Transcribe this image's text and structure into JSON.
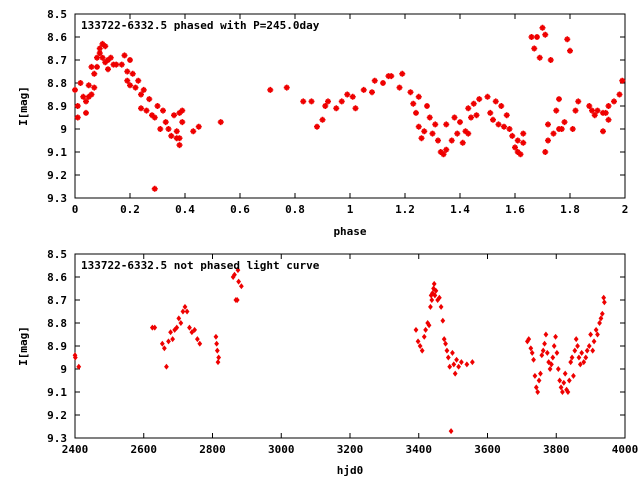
{
  "chart_data": [
    {
      "type": "scatter",
      "title": "133722-6332.5 phased with P=245.0day",
      "xlabel": "phase",
      "ylabel": "I[mag]",
      "xlim": [
        0,
        2
      ],
      "ylim": [
        8.5,
        9.3
      ],
      "y_inverted": true,
      "xticks": [
        "0",
        "0.2",
        "0.4",
        "0.6",
        "0.8",
        "1",
        "1.2",
        "1.4",
        "1.6",
        "1.8",
        "2"
      ],
      "yticks": [
        "8.5",
        "8.6",
        "8.7",
        "8.8",
        "8.9",
        "9",
        "9.1",
        "9.2",
        "9.3"
      ],
      "marker": "plus",
      "color": "#ee0000",
      "points": [
        [
          0.0,
          8.83
        ],
        [
          0.01,
          8.9
        ],
        [
          0.01,
          8.95
        ],
        [
          0.02,
          8.8
        ],
        [
          0.03,
          8.86
        ],
        [
          0.04,
          8.88
        ],
        [
          0.04,
          8.93
        ],
        [
          0.05,
          8.81
        ],
        [
          0.05,
          8.86
        ],
        [
          0.06,
          8.73
        ],
        [
          0.06,
          8.85
        ],
        [
          0.07,
          8.82
        ],
        [
          0.07,
          8.76
        ],
        [
          0.08,
          8.69
        ],
        [
          0.08,
          8.73
        ],
        [
          0.09,
          8.65
        ],
        [
          0.09,
          8.67
        ],
        [
          0.1,
          8.63
        ],
        [
          0.1,
          8.69
        ],
        [
          0.11,
          8.64
        ],
        [
          0.11,
          8.71
        ],
        [
          0.12,
          8.7
        ],
        [
          0.12,
          8.74
        ],
        [
          0.13,
          8.69
        ],
        [
          0.14,
          8.72
        ],
        [
          0.15,
          8.72
        ],
        [
          0.17,
          8.72
        ],
        [
          0.18,
          8.68
        ],
        [
          0.19,
          8.75
        ],
        [
          0.19,
          8.79
        ],
        [
          0.2,
          8.7
        ],
        [
          0.2,
          8.81
        ],
        [
          0.21,
          8.76
        ],
        [
          0.22,
          8.82
        ],
        [
          0.23,
          8.79
        ],
        [
          0.24,
          8.85
        ],
        [
          0.24,
          8.91
        ],
        [
          0.25,
          8.83
        ],
        [
          0.26,
          8.92
        ],
        [
          0.27,
          8.87
        ],
        [
          0.28,
          8.94
        ],
        [
          0.29,
          9.26
        ],
        [
          0.29,
          8.95
        ],
        [
          0.3,
          8.9
        ],
        [
          0.31,
          9.0
        ],
        [
          0.32,
          8.92
        ],
        [
          0.33,
          8.97
        ],
        [
          0.34,
          9.0
        ],
        [
          0.35,
          9.03
        ],
        [
          0.36,
          8.94
        ],
        [
          0.37,
          9.01
        ],
        [
          0.37,
          9.04
        ],
        [
          0.38,
          9.07
        ],
        [
          0.38,
          8.93
        ],
        [
          0.38,
          9.04
        ],
        [
          0.39,
          8.97
        ],
        [
          0.39,
          8.92
        ],
        [
          0.43,
          9.01
        ],
        [
          0.45,
          8.99
        ],
        [
          0.53,
          8.97
        ],
        [
          0.71,
          8.83
        ],
        [
          0.77,
          8.82
        ],
        [
          0.83,
          8.88
        ],
        [
          0.86,
          8.88
        ],
        [
          0.88,
          8.99
        ],
        [
          0.9,
          8.96
        ],
        [
          0.91,
          8.9
        ],
        [
          0.92,
          8.88
        ],
        [
          0.95,
          8.91
        ],
        [
          0.97,
          8.88
        ],
        [
          0.99,
          8.85
        ],
        [
          1.01,
          8.86
        ],
        [
          1.02,
          8.91
        ],
        [
          1.05,
          8.83
        ],
        [
          1.08,
          8.84
        ],
        [
          1.09,
          8.79
        ],
        [
          1.12,
          8.8
        ],
        [
          1.14,
          8.77
        ],
        [
          1.15,
          8.77
        ],
        [
          1.18,
          8.82
        ],
        [
          1.19,
          8.76
        ],
        [
          1.22,
          8.84
        ],
        [
          1.23,
          8.89
        ],
        [
          1.24,
          8.93
        ],
        [
          1.25,
          8.86
        ],
        [
          1.25,
          8.99
        ],
        [
          1.26,
          9.04
        ],
        [
          1.27,
          9.01
        ],
        [
          1.28,
          8.9
        ],
        [
          1.29,
          8.95
        ],
        [
          1.3,
          9.02
        ],
        [
          1.31,
          8.98
        ],
        [
          1.32,
          9.05
        ],
        [
          1.33,
          9.1
        ],
        [
          1.34,
          9.11
        ],
        [
          1.35,
          9.09
        ],
        [
          1.35,
          8.98
        ],
        [
          1.37,
          9.05
        ],
        [
          1.38,
          8.95
        ],
        [
          1.39,
          9.02
        ],
        [
          1.4,
          8.97
        ],
        [
          1.41,
          9.06
        ],
        [
          1.42,
          9.01
        ],
        [
          1.43,
          9.02
        ],
        [
          1.43,
          8.91
        ],
        [
          1.44,
          8.95
        ],
        [
          1.45,
          8.89
        ],
        [
          1.46,
          8.94
        ],
        [
          1.47,
          8.87
        ],
        [
          1.5,
          8.86
        ],
        [
          1.51,
          8.93
        ],
        [
          1.52,
          8.96
        ],
        [
          1.53,
          8.88
        ],
        [
          1.54,
          8.98
        ],
        [
          1.55,
          8.9
        ],
        [
          1.56,
          8.99
        ],
        [
          1.57,
          8.94
        ],
        [
          1.58,
          9.0
        ],
        [
          1.59,
          9.03
        ],
        [
          1.6,
          9.08
        ],
        [
          1.61,
          9.1
        ],
        [
          1.61,
          9.05
        ],
        [
          1.62,
          9.11
        ],
        [
          1.63,
          9.06
        ],
        [
          1.63,
          9.02
        ],
        [
          1.66,
          8.6
        ],
        [
          1.67,
          8.65
        ],
        [
          1.68,
          8.6
        ],
        [
          1.69,
          8.69
        ],
        [
          1.7,
          8.56
        ],
        [
          1.71,
          8.59
        ],
        [
          1.71,
          9.1
        ],
        [
          1.72,
          9.05
        ],
        [
          1.72,
          8.98
        ],
        [
          1.73,
          8.7
        ],
        [
          1.74,
          9.02
        ],
        [
          1.75,
          8.92
        ],
        [
          1.76,
          9.0
        ],
        [
          1.76,
          8.87
        ],
        [
          1.77,
          9.0
        ],
        [
          1.78,
          8.97
        ],
        [
          1.79,
          8.61
        ],
        [
          1.8,
          8.66
        ],
        [
          1.81,
          9.0
        ],
        [
          1.82,
          8.92
        ],
        [
          1.83,
          8.88
        ],
        [
          1.87,
          8.9
        ],
        [
          1.88,
          8.92
        ],
        [
          1.89,
          8.94
        ],
        [
          1.9,
          8.92
        ],
        [
          1.92,
          8.93
        ],
        [
          1.92,
          9.01
        ],
        [
          1.93,
          8.93
        ],
        [
          1.94,
          8.9
        ],
        [
          1.94,
          8.96
        ],
        [
          1.96,
          8.88
        ],
        [
          1.98,
          8.85
        ],
        [
          1.99,
          8.79
        ]
      ]
    },
    {
      "type": "scatter",
      "title": "133722-6332.5 not phased light curve",
      "xlabel": "hjd0",
      "ylabel": "I[mag]",
      "xlim": [
        2400,
        4000
      ],
      "ylim": [
        8.5,
        9.3
      ],
      "y_inverted": true,
      "xticks": [
        "2400",
        "2600",
        "2800",
        "3000",
        "3200",
        "3400",
        "3600",
        "3800",
        "4000"
      ],
      "yticks": [
        "8.5",
        "8.6",
        "8.7",
        "8.8",
        "8.9",
        "9",
        "9.1",
        "9.2",
        "9.3"
      ],
      "marker": "diamond",
      "color": "#ee0000",
      "points": [
        [
          2400,
          8.94
        ],
        [
          2401,
          8.95
        ],
        [
          2411,
          8.99
        ],
        [
          2625,
          8.82
        ],
        [
          2632,
          8.82
        ],
        [
          2654,
          8.89
        ],
        [
          2660,
          8.91
        ],
        [
          2666,
          8.99
        ],
        [
          2672,
          8.88
        ],
        [
          2678,
          8.84
        ],
        [
          2684,
          8.87
        ],
        [
          2690,
          8.83
        ],
        [
          2696,
          8.82
        ],
        [
          2702,
          8.78
        ],
        [
          2708,
          8.8
        ],
        [
          2714,
          8.75
        ],
        [
          2720,
          8.73
        ],
        [
          2726,
          8.75
        ],
        [
          2733,
          8.82
        ],
        [
          2740,
          8.84
        ],
        [
          2748,
          8.83
        ],
        [
          2756,
          8.87
        ],
        [
          2763,
          8.89
        ],
        [
          2810,
          8.86
        ],
        [
          2812,
          8.89
        ],
        [
          2814,
          8.92
        ],
        [
          2816,
          8.97
        ],
        [
          2818,
          8.95
        ],
        [
          2860,
          8.6
        ],
        [
          2864,
          8.59
        ],
        [
          2868,
          8.7
        ],
        [
          2872,
          8.7
        ],
        [
          2874,
          8.57
        ],
        [
          2876,
          8.62
        ],
        [
          2884,
          8.64
        ],
        [
          3392,
          8.83
        ],
        [
          3398,
          8.88
        ],
        [
          3404,
          8.9
        ],
        [
          3410,
          8.92
        ],
        [
          3416,
          8.86
        ],
        [
          3420,
          8.83
        ],
        [
          3426,
          8.8
        ],
        [
          3430,
          8.81
        ],
        [
          3434,
          8.73
        ],
        [
          3436,
          8.68
        ],
        [
          3438,
          8.7
        ],
        [
          3440,
          8.67
        ],
        [
          3443,
          8.65
        ],
        [
          3445,
          8.63
        ],
        [
          3447,
          8.68
        ],
        [
          3450,
          8.66
        ],
        [
          3455,
          8.7
        ],
        [
          3460,
          8.69
        ],
        [
          3465,
          8.73
        ],
        [
          3470,
          8.79
        ],
        [
          3474,
          8.87
        ],
        [
          3478,
          8.89
        ],
        [
          3482,
          8.92
        ],
        [
          3486,
          8.95
        ],
        [
          3490,
          8.99
        ],
        [
          3494,
          9.27
        ],
        [
          3498,
          8.93
        ],
        [
          3502,
          8.98
        ],
        [
          3506,
          9.02
        ],
        [
          3510,
          8.96
        ],
        [
          3516,
          8.99
        ],
        [
          3524,
          8.97
        ],
        [
          3540,
          8.98
        ],
        [
          3556,
          8.97
        ],
        [
          3716,
          8.88
        ],
        [
          3720,
          8.87
        ],
        [
          3726,
          8.91
        ],
        [
          3730,
          8.93
        ],
        [
          3734,
          8.96
        ],
        [
          3738,
          9.03
        ],
        [
          3742,
          9.08
        ],
        [
          3746,
          9.1
        ],
        [
          3750,
          9.05
        ],
        [
          3754,
          9.02
        ],
        [
          3758,
          8.94
        ],
        [
          3762,
          8.92
        ],
        [
          3766,
          8.89
        ],
        [
          3770,
          8.85
        ],
        [
          3774,
          8.93
        ],
        [
          3778,
          8.97
        ],
        [
          3782,
          9.0
        ],
        [
          3786,
          8.98
        ],
        [
          3790,
          8.95
        ],
        [
          3794,
          8.9
        ],
        [
          3798,
          8.86
        ],
        [
          3802,
          8.93
        ],
        [
          3806,
          9.0
        ],
        [
          3810,
          9.05
        ],
        [
          3814,
          9.08
        ],
        [
          3818,
          9.1
        ],
        [
          3822,
          9.06
        ],
        [
          3826,
          9.02
        ],
        [
          3830,
          9.09
        ],
        [
          3834,
          9.1
        ],
        [
          3838,
          9.05
        ],
        [
          3842,
          8.97
        ],
        [
          3846,
          8.95
        ],
        [
          3850,
          9.03
        ],
        [
          3854,
          8.92
        ],
        [
          3858,
          8.87
        ],
        [
          3862,
          8.9
        ],
        [
          3866,
          8.95
        ],
        [
          3870,
          8.98
        ],
        [
          3874,
          8.93
        ],
        [
          3880,
          8.97
        ],
        [
          3886,
          8.95
        ],
        [
          3890,
          8.92
        ],
        [
          3896,
          8.9
        ],
        [
          3900,
          8.85
        ],
        [
          3906,
          8.92
        ],
        [
          3910,
          8.88
        ],
        [
          3916,
          8.83
        ],
        [
          3920,
          8.85
        ],
        [
          3926,
          8.8
        ],
        [
          3930,
          8.78
        ],
        [
          3934,
          8.76
        ],
        [
          3938,
          8.69
        ],
        [
          3940,
          8.71
        ]
      ]
    }
  ]
}
